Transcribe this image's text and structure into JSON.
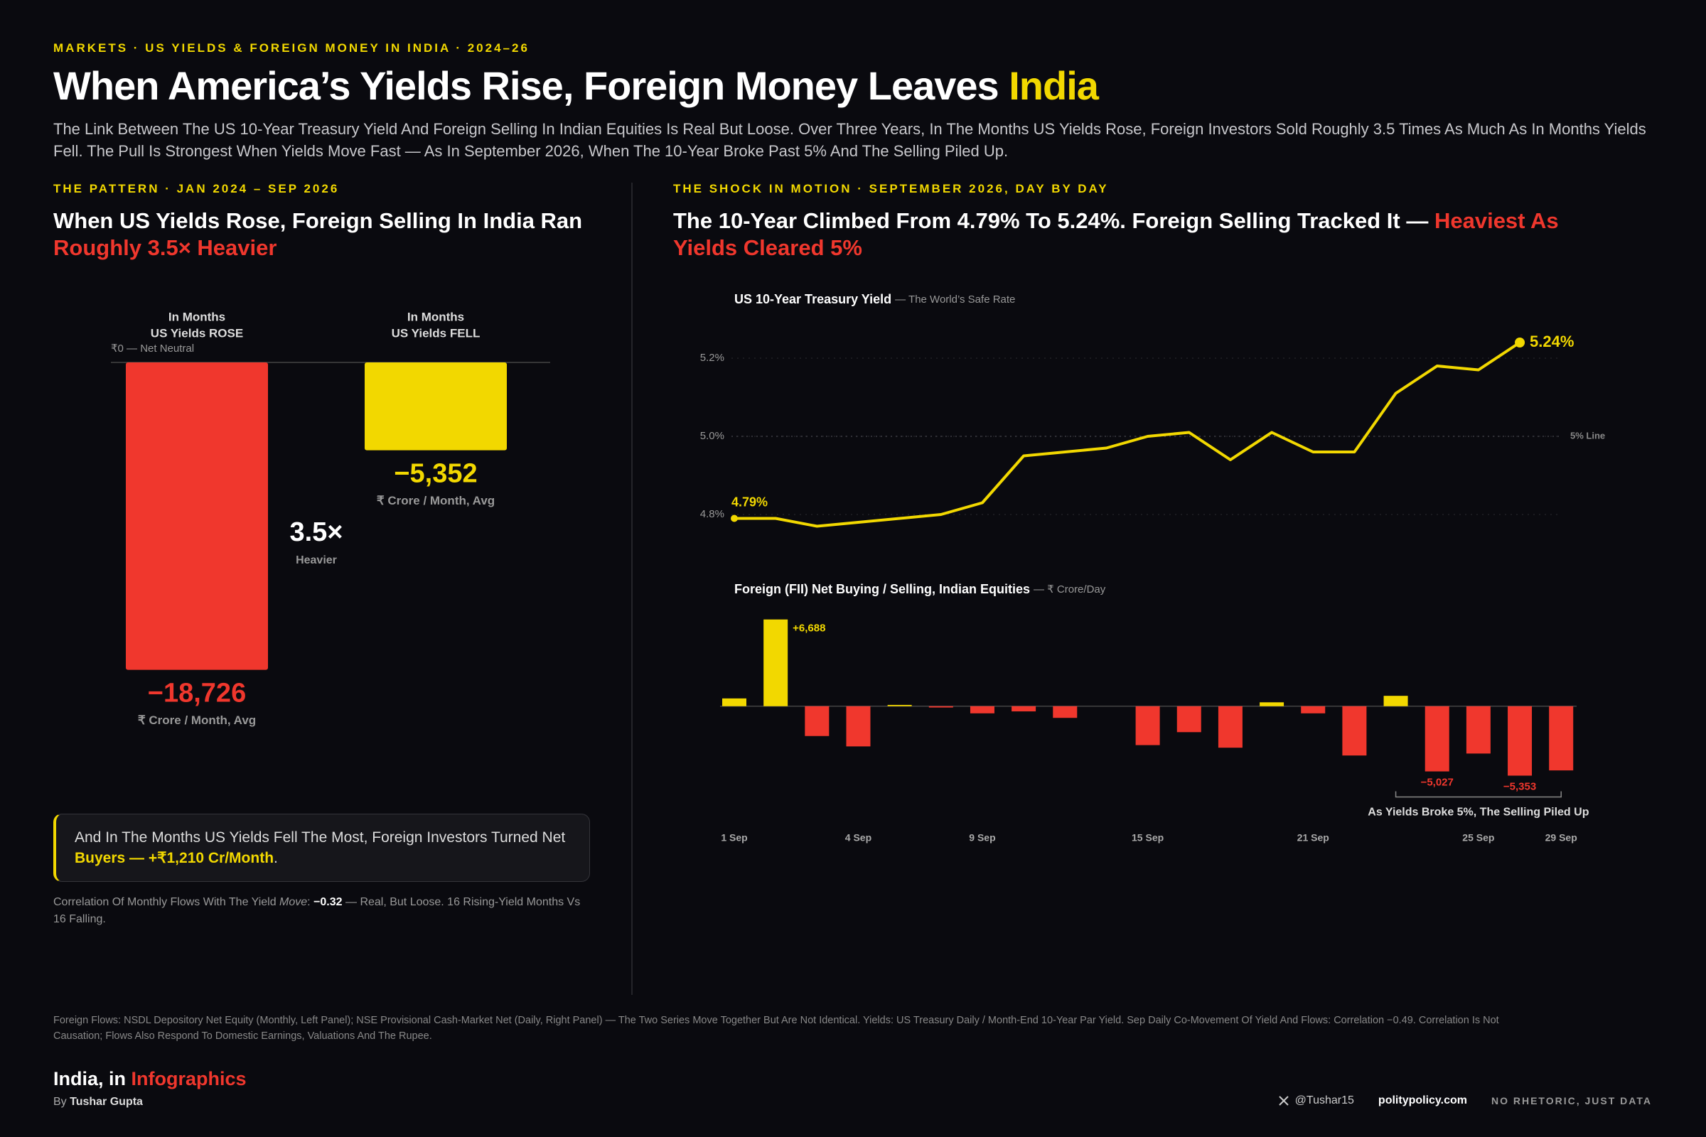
{
  "header": {
    "kicker": "MARKETS · US YIELDS & FOREIGN MONEY IN INDIA · 2024–26",
    "title_parts": [
      "When America’s Yields Rise, Foreign Money Leaves ",
      "India"
    ],
    "subtitle": "The Link Between The US 10-Year Treasury Yield And Foreign Selling In Indian Equities Is Real But Loose. Over Three Years, In The Months US Yields Rose, Foreign Investors Sold Roughly 3.5 Times As Much As In Months Yields Fell. The Pull Is Strongest When Yields Move Fast — As In September 2026, When The 10-Year Broke Past 5% And The Selling Piled Up."
  },
  "left_panel": {
    "kicker": "THE PATTERN · JAN 2024 – SEP 2026",
    "headline_parts": [
      "When US Yields Rose, Foreign Selling In India Ran ",
      "Roughly 3.5× Heavier"
    ],
    "callout_parts": [
      "And In The Months US Yields Fell The Most, Foreign Investors Turned Net ",
      "Buyers — +₹1,210 Cr/Month",
      "."
    ],
    "note_parts": [
      "Correlation Of Monthly Flows With The Yield ",
      "Move",
      ": ",
      "−0.32",
      " — Real, But Loose. 16 Rising-Yield Months Vs 16 Falling."
    ]
  },
  "right_panel": {
    "kicker": "THE SHOCK IN MOTION · SEPTEMBER 2026, DAY BY DAY",
    "headline_parts": [
      "The 10-Year Climbed From 4.79% To 5.24%. Foreign Selling Tracked It — ",
      "Heaviest As Yields Cleared 5%"
    ]
  },
  "chart_data": [
    {
      "type": "bar",
      "categories": [
        [
          "In Months",
          "US Yields ROSE"
        ],
        [
          "In Months",
          "US Yields FELL"
        ]
      ],
      "values": [
        -18726,
        -5352
      ],
      "value_labels": [
        "−18,726",
        "−5,352"
      ],
      "colors": [
        "#f0372d",
        "#f2d800"
      ],
      "ylim": [
        -20000,
        0
      ],
      "baseline_label": "₹0 — Net Neutral",
      "value_unit": "₹ Crore / Month, Avg",
      "ratio_label": "3.5×",
      "ratio_caption": "Heavier"
    },
    {
      "type": "line",
      "title": "US 10-Year Treasury Yield",
      "subtitle": "— The World’s Safe Rate",
      "color": "#f2d800",
      "values": [
        4.79,
        4.79,
        4.77,
        4.78,
        4.79,
        4.8,
        4.83,
        4.95,
        4.96,
        4.97,
        5.0,
        5.01,
        4.94,
        5.01,
        4.96,
        4.96,
        5.11,
        5.18,
        5.17,
        5.24,
        null
      ],
      "value_labels": [
        "4.79%",
        null,
        null,
        null,
        null,
        null,
        null,
        null,
        null,
        null,
        null,
        null,
        null,
        null,
        null,
        null,
        null,
        null,
        null,
        "5.24%",
        null
      ],
      "ylim": [
        4.75,
        5.3
      ],
      "yticks": [
        {
          "value": 4.8,
          "label": "4.8%"
        },
        {
          "value": 5.0,
          "label": "5.0%"
        },
        {
          "value": 5.2,
          "label": "5.2%"
        }
      ],
      "grid": true,
      "reference": {
        "value": 5.0,
        "label": "5% Line"
      }
    },
    {
      "type": "bar",
      "title": "Foreign (FII) Net Buying / Selling, Indian Equities",
      "subtitle": "— ₹ Crore/Day",
      "categories": [
        "1 Sep",
        null,
        null,
        "4 Sep",
        null,
        null,
        "9 Sep",
        null,
        null,
        null,
        "15 Sep",
        null,
        null,
        null,
        "21 Sep",
        null,
        null,
        null,
        "25 Sep",
        null,
        "29 Sep"
      ],
      "values": [
        600,
        6688,
        -2300,
        -3100,
        100,
        -100,
        -550,
        -400,
        -900,
        0,
        -3000,
        -2000,
        -3200,
        300,
        -550,
        -3800,
        800,
        -5027,
        -3650,
        -5353,
        -4950
      ],
      "value_labels": [
        null,
        "+6,688",
        null,
        null,
        null,
        null,
        null,
        null,
        null,
        null,
        null,
        null,
        null,
        null,
        null,
        null,
        null,
        "−5,027",
        null,
        "−5,353",
        null
      ],
      "positive_color": "#f2d800",
      "negative_color": "#f0372d",
      "ylim": [
        -5600,
        7000
      ],
      "annotation": "As Yields Broke 5%, The Selling Piled Up"
    }
  ],
  "footer": {
    "source": "Foreign Flows: NSDL Depository Net Equity (Monthly, Left Panel); NSE Provisional Cash-Market Net (Daily, Right Panel) — The Two Series Move Together But Are Not Identical. Yields: US Treasury Daily / Month-End 10-Year Par Yield. Sep Daily Co-Movement Of Yield And Flows: Correlation −0.49. Correlation Is Not Causation; Flows Also Respond To Domestic Earnings, Valuations And The Rupee.",
    "brand_parts": [
      "India, in ",
      "Infographics"
    ],
    "byline_parts": [
      "By ",
      "Tushar Gupta"
    ],
    "handle": "@Tushar15",
    "site": "politypolicy.com",
    "tagline": "NO RHETORIC, JUST DATA"
  }
}
